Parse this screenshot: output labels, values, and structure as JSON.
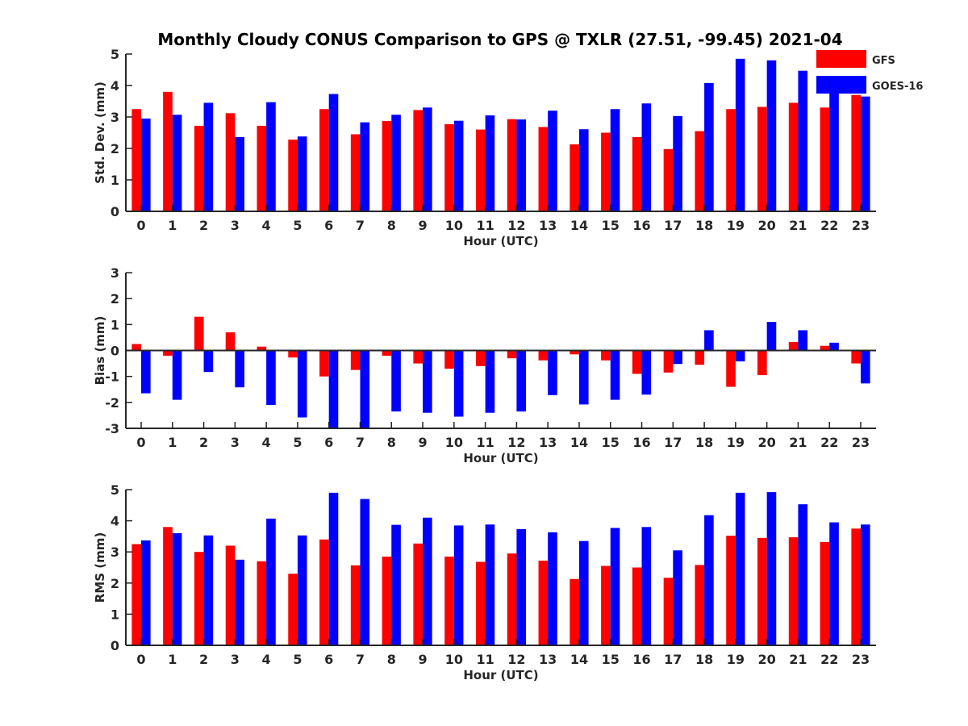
{
  "colors": {
    "gfs": "#ff0000",
    "goes": "#0000ff",
    "axis": "#262626",
    "background": "#ffffff"
  },
  "legend": {
    "items": [
      "GFS",
      "GOES-16"
    ]
  },
  "chart_data": [
    {
      "type": "bar",
      "title": "Monthly Cloudy CONUS Comparison to GPS @ TXLR (27.51, -99.45) 2021-04",
      "xlabel": "Hour (UTC)",
      "ylabel": "Std. Dev. (mm)",
      "ylim": [
        0,
        5
      ],
      "yticks": [
        "0",
        "1",
        "2",
        "3",
        "4",
        "5"
      ],
      "categories": [
        "0",
        "1",
        "2",
        "3",
        "4",
        "5",
        "6",
        "7",
        "8",
        "9",
        "10",
        "11",
        "12",
        "13",
        "14",
        "15",
        "16",
        "17",
        "18",
        "19",
        "20",
        "21",
        "22",
        "23"
      ],
      "series": [
        {
          "name": "GFS",
          "values": [
            3.25,
            3.8,
            2.72,
            3.12,
            2.72,
            2.28,
            3.25,
            2.45,
            2.87,
            3.22,
            2.77,
            2.6,
            2.93,
            2.68,
            2.13,
            2.5,
            2.36,
            1.98,
            2.55,
            3.25,
            3.32,
            3.45,
            3.3,
            3.7
          ]
        },
        {
          "name": "GOES-16",
          "values": [
            2.95,
            3.07,
            3.45,
            2.36,
            3.47,
            2.38,
            3.73,
            2.83,
            3.07,
            3.3,
            2.88,
            3.05,
            2.92,
            3.2,
            2.61,
            3.25,
            3.43,
            3.03,
            4.08,
            4.85,
            4.8,
            4.47,
            3.9,
            3.65
          ]
        }
      ]
    },
    {
      "type": "bar",
      "title": "",
      "xlabel": "Hour (UTC)",
      "ylabel": "Bias (mm)",
      "ylim": [
        -3,
        3
      ],
      "yticks": [
        "-3",
        "-2",
        "-1",
        "0",
        "1",
        "2",
        "3"
      ],
      "categories": [
        "0",
        "1",
        "2",
        "3",
        "4",
        "5",
        "6",
        "7",
        "8",
        "9",
        "10",
        "11",
        "12",
        "13",
        "14",
        "15",
        "16",
        "17",
        "18",
        "19",
        "20",
        "21",
        "22",
        "23"
      ],
      "series": [
        {
          "name": "GFS",
          "values": [
            0.25,
            -0.2,
            1.3,
            0.7,
            0.15,
            -0.27,
            -1.0,
            -0.75,
            -0.2,
            -0.5,
            -0.7,
            -0.6,
            -0.3,
            -0.38,
            -0.15,
            -0.38,
            -0.9,
            -0.85,
            -0.55,
            -1.4,
            -0.95,
            0.33,
            0.18,
            -0.5
          ]
        },
        {
          "name": "GOES-16",
          "values": [
            -1.65,
            -1.9,
            -0.83,
            -1.42,
            -2.1,
            -2.58,
            -3.0,
            -3.0,
            -2.35,
            -2.4,
            -2.55,
            -2.4,
            -2.35,
            -1.72,
            -2.08,
            -1.9,
            -1.7,
            -0.52,
            0.78,
            -0.42,
            1.1,
            0.78,
            0.3,
            -1.27
          ]
        }
      ]
    },
    {
      "type": "bar",
      "title": "",
      "xlabel": "Hour (UTC)",
      "ylabel": "RMS (mm)",
      "ylim": [
        0,
        5
      ],
      "yticks": [
        "0",
        "1",
        "2",
        "3",
        "4",
        "5"
      ],
      "categories": [
        "0",
        "1",
        "2",
        "3",
        "4",
        "5",
        "6",
        "7",
        "8",
        "9",
        "10",
        "11",
        "12",
        "13",
        "14",
        "15",
        "16",
        "17",
        "18",
        "19",
        "20",
        "21",
        "22",
        "23"
      ],
      "series": [
        {
          "name": "GFS",
          "values": [
            3.25,
            3.8,
            3.0,
            3.2,
            2.7,
            2.3,
            3.4,
            2.57,
            2.85,
            3.27,
            2.85,
            2.68,
            2.95,
            2.72,
            2.13,
            2.55,
            2.5,
            2.17,
            2.58,
            3.52,
            3.45,
            3.47,
            3.32,
            3.75
          ]
        },
        {
          "name": "GOES-16",
          "values": [
            3.37,
            3.6,
            3.53,
            2.75,
            4.07,
            3.53,
            4.9,
            4.7,
            3.87,
            4.1,
            3.85,
            3.88,
            3.73,
            3.63,
            3.35,
            3.77,
            3.8,
            3.05,
            4.18,
            4.9,
            4.92,
            4.53,
            3.95,
            3.88
          ]
        }
      ]
    }
  ]
}
